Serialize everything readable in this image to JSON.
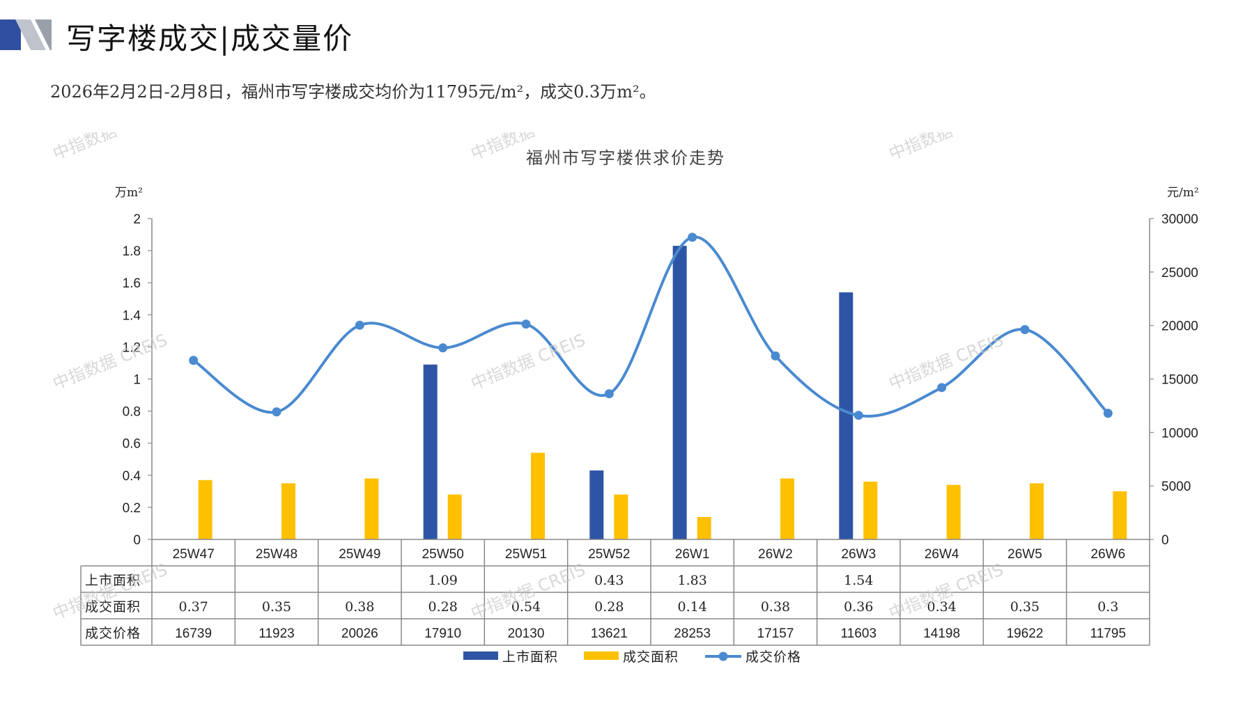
{
  "header": {
    "title": "写字楼成交|成交量价",
    "subtitle": "2026年2月2日-2月8日，福州市写字楼成交均价为11795元/m²，成交0.3万m²。",
    "logo_colors": [
      "#2f4fa0",
      "#bfc4cc"
    ]
  },
  "watermark": "中指数据 CREIS",
  "chart_data": {
    "type": "bar",
    "title": "福州市写字楼供求价走势",
    "y_left_unit": "万m²",
    "y_right_unit": "元/m²",
    "y_left_lim": [
      0,
      2
    ],
    "y_left_ticks": [
      "0",
      "0.2",
      "0.4",
      "0.6",
      "0.8",
      "1",
      "1.2",
      "1.4",
      "1.6",
      "1.8",
      "2"
    ],
    "y_right_lim": [
      0,
      30000
    ],
    "y_right_ticks": [
      "0",
      "5000",
      "10000",
      "15000",
      "20000",
      "25000",
      "30000"
    ],
    "categories": [
      "25W47",
      "25W48",
      "25W49",
      "25W50",
      "25W51",
      "25W52",
      "26W1",
      "26W2",
      "26W3",
      "26W4",
      "26W5",
      "26W6"
    ],
    "series": [
      {
        "name": "上市面积",
        "type": "bar",
        "axis": "left",
        "color": "#2e55a5",
        "values": [
          null,
          null,
          null,
          1.09,
          null,
          0.43,
          1.83,
          null,
          1.54,
          null,
          null,
          null
        ],
        "labels": [
          "",
          "",
          "",
          "1.09",
          "",
          "0.43",
          "1.83",
          "",
          "1.54",
          "",
          "",
          ""
        ]
      },
      {
        "name": "成交面积",
        "type": "bar",
        "axis": "left",
        "color": "#ffc000",
        "values": [
          0.37,
          0.35,
          0.38,
          0.28,
          0.54,
          0.28,
          0.14,
          0.38,
          0.36,
          0.34,
          0.35,
          0.3
        ],
        "labels": [
          "0.37",
          "0.35",
          "0.38",
          "0.28",
          "0.54",
          "0.28",
          "0.14",
          "0.38",
          "0.36",
          "0.34",
          "0.35",
          "0.3"
        ]
      },
      {
        "name": "成交价格",
        "type": "line",
        "axis": "right",
        "color": "#4a8ad0",
        "values": [
          16739,
          11923,
          20026,
          17910,
          20130,
          13621,
          28253,
          17157,
          11603,
          14198,
          19622,
          11795
        ],
        "labels": [
          "16739",
          "11923",
          "20026",
          "17910",
          "20130",
          "13621",
          "28253",
          "17157",
          "11603",
          "14198",
          "19622",
          "11795"
        ]
      }
    ],
    "legend_placement": "bottom-center",
    "grid": false
  }
}
